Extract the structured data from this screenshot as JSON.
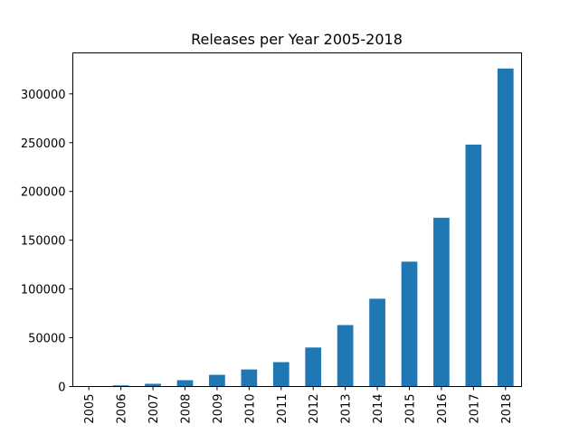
{
  "chart_data": {
    "type": "bar",
    "title": "Releases per Year 2005-2018",
    "xlabel": "",
    "ylabel": "",
    "categories": [
      "2005",
      "2006",
      "2007",
      "2008",
      "2009",
      "2010",
      "2011",
      "2012",
      "2013",
      "2014",
      "2015",
      "2016",
      "2017",
      "2018"
    ],
    "values": [
      200,
      1200,
      2800,
      6500,
      12000,
      17500,
      25000,
      40000,
      63000,
      90000,
      128000,
      173000,
      248000,
      326000
    ],
    "ylim": [
      0,
      342000
    ],
    "yticks": [
      0,
      50000,
      100000,
      150000,
      200000,
      250000,
      300000
    ],
    "ytick_labels": [
      "0",
      "50000",
      "100000",
      "150000",
      "200000",
      "250000",
      "300000"
    ],
    "bar_color": "#1f77b4",
    "grid": false,
    "legend": "none"
  }
}
